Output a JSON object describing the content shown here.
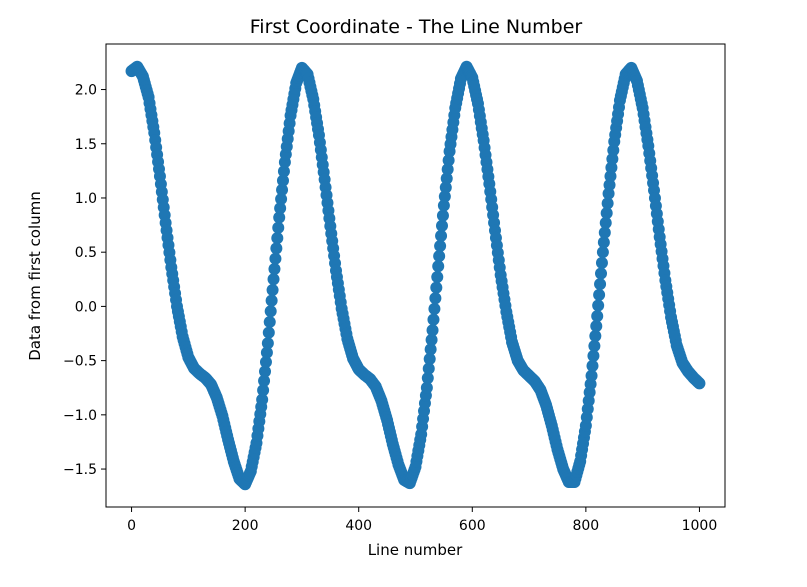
{
  "chart_data": {
    "type": "scatter",
    "title": "First Coordinate - The Line Number",
    "xlabel": "Line number",
    "ylabel": "Data from first column",
    "xlim": [
      -45,
      1045
    ],
    "ylim": [
      -1.85,
      2.42
    ],
    "xticks": [
      0,
      200,
      400,
      600,
      800,
      1000
    ],
    "yticks": [
      2.0,
      1.5,
      1.0,
      0.5,
      0.0,
      -0.5,
      -1.0,
      -1.5
    ],
    "xtick_labels": [
      "0",
      "200",
      "400",
      "600",
      "800",
      "1000"
    ],
    "ytick_labels": [
      "2.0",
      "1.5",
      "1.0",
      "0.5",
      "0.0",
      "−0.5",
      "−1.0",
      "−1.5"
    ],
    "series": [
      {
        "color": "#1f77b4",
        "marker": "circle",
        "x": [
          0,
          10,
          20,
          30,
          40,
          50,
          60,
          70,
          80,
          90,
          100,
          110,
          120,
          130,
          140,
          150,
          160,
          170,
          180,
          190,
          200,
          210,
          220,
          230,
          240,
          250,
          260,
          270,
          280,
          290,
          300,
          310,
          320,
          330,
          340,
          350,
          360,
          370,
          380,
          390,
          400,
          410,
          420,
          430,
          440,
          450,
          460,
          470,
          480,
          490,
          500,
          510,
          520,
          530,
          540,
          550,
          560,
          570,
          580,
          590,
          600,
          610,
          620,
          630,
          640,
          650,
          660,
          670,
          680,
          690,
          700,
          710,
          720,
          730,
          740,
          750,
          760,
          770,
          780,
          790,
          800,
          810,
          820,
          830,
          840,
          850,
          860,
          870,
          880,
          890,
          900,
          910,
          920,
          930,
          940,
          950,
          960,
          970,
          980,
          990,
          1000
        ],
        "y": [
          2.17,
          2.21,
          2.12,
          1.93,
          1.6,
          1.2,
          0.77,
          0.36,
          0.0,
          -0.28,
          -0.47,
          -0.57,
          -0.62,
          -0.66,
          -0.72,
          -0.84,
          -1.01,
          -1.23,
          -1.43,
          -1.59,
          -1.64,
          -1.52,
          -1.26,
          -0.86,
          -0.34,
          0.25,
          0.82,
          1.33,
          1.76,
          2.06,
          2.2,
          2.14,
          1.91,
          1.58,
          1.17,
          0.74,
          0.33,
          -0.02,
          -0.3,
          -0.48,
          -0.58,
          -0.63,
          -0.67,
          -0.74,
          -0.87,
          -1.05,
          -1.27,
          -1.46,
          -1.6,
          -1.63,
          -1.48,
          -1.18,
          -0.75,
          -0.22,
          0.37,
          0.93,
          1.43,
          1.83,
          2.1,
          2.21,
          2.11,
          1.87,
          1.53,
          1.13,
          0.7,
          0.29,
          -0.05,
          -0.33,
          -0.5,
          -0.59,
          -0.64,
          -0.69,
          -0.77,
          -0.91,
          -1.1,
          -1.32,
          -1.5,
          -1.62,
          -1.62,
          -1.43,
          -1.1,
          -0.64,
          -0.09,
          0.5,
          1.04,
          1.52,
          1.9,
          2.14,
          2.2,
          2.08,
          1.83,
          1.48,
          1.07,
          0.64,
          0.24,
          -0.1,
          -0.36,
          -0.52,
          -0.6,
          -0.66,
          -0.71
        ]
      }
    ]
  }
}
